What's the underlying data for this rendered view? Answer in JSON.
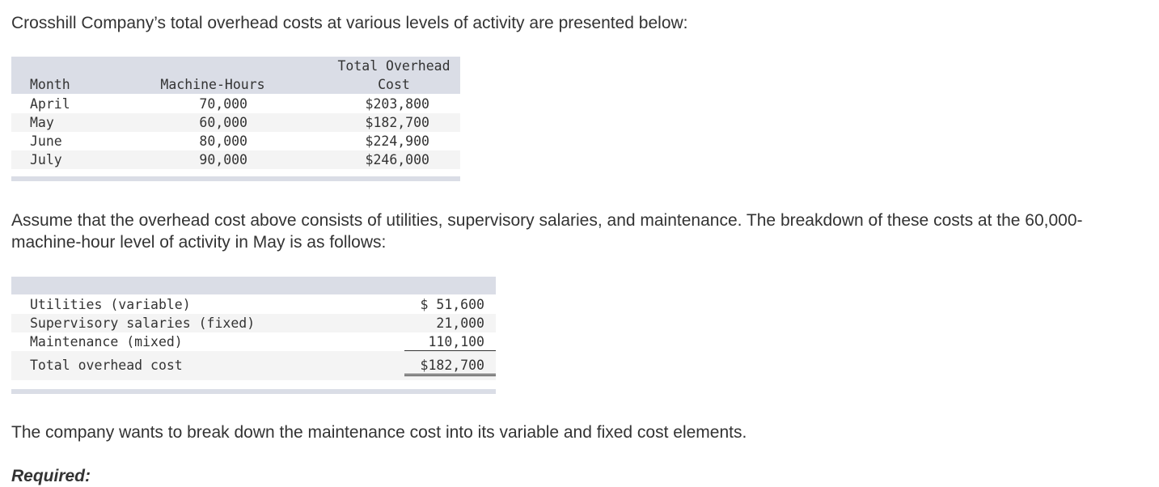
{
  "intro": "Crosshill Company’s total overhead costs at various levels of activity are presented below:",
  "table1": {
    "headers": [
      "Month",
      "Machine-Hours",
      "Total Overhead Cost"
    ],
    "rows": [
      [
        "April",
        "70,000",
        "$203,800"
      ],
      [
        "May",
        "60,000",
        "$182,700"
      ],
      [
        "June",
        "80,000",
        "$224,900"
      ],
      [
        "July",
        "90,000",
        "$246,000"
      ]
    ]
  },
  "paragraph2": "Assume that the overhead cost above consists of utilities, supervisory salaries, and maintenance. The breakdown of these costs at the 60,000-machine-hour level of activity in May is as follows:",
  "table2": {
    "rows": [
      [
        "Utilities (variable)",
        "$ 51,600"
      ],
      [
        "Supervisory salaries (fixed)",
        "21,000"
      ],
      [
        "Maintenance (mixed)",
        "110,100"
      ],
      [
        "Total overhead cost",
        "$182,700"
      ]
    ]
  },
  "paragraph3": "The company wants to break down the maintenance cost into its variable and fixed cost elements.",
  "required": "Required:"
}
